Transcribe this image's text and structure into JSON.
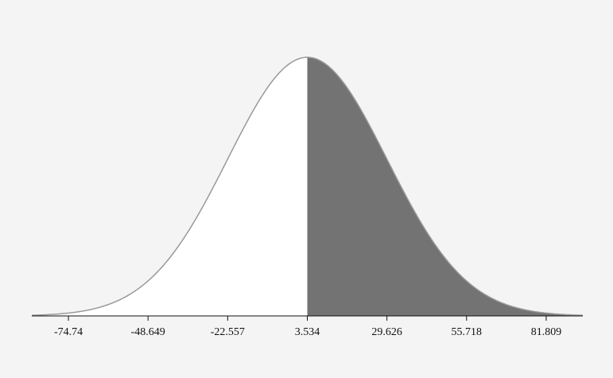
{
  "chart_data": {
    "type": "area",
    "distribution": "normal",
    "mean": 3.534,
    "std_dev": 26.0915,
    "shaded_region": {
      "from": 3.534,
      "to": "+inf"
    },
    "xlim": [
      -86.74,
      93.809
    ],
    "ticks": [
      "-74.74",
      "-48.649",
      "-22.557",
      "3.534",
      "29.626",
      "55.718",
      "81.809"
    ],
    "tick_values": [
      -74.74,
      -48.649,
      -22.557,
      3.534,
      29.626,
      55.718,
      81.809
    ],
    "colors": {
      "background": "#f4f4f4",
      "curve_stroke": "#999999",
      "curve_fill": "#ffffff",
      "shaded_fill": "#737373",
      "axis": "#111111"
    },
    "grid": false,
    "legend": "none"
  }
}
